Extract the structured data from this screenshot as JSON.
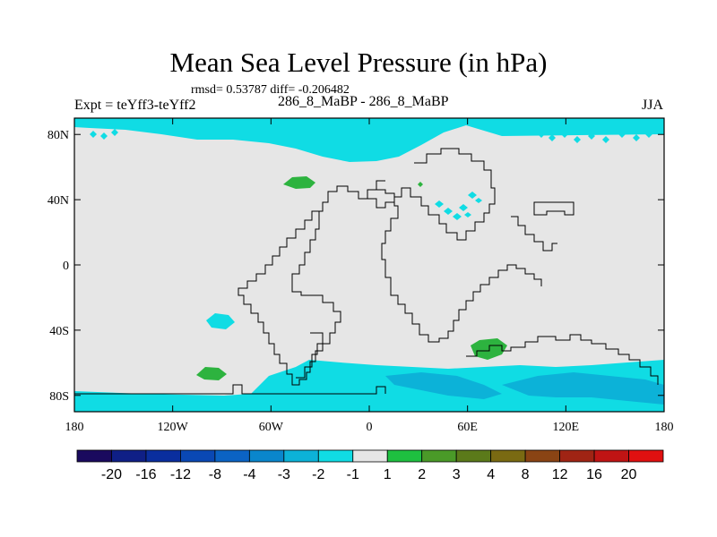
{
  "title": "Mean Sea Level Pressure (in hPa)",
  "stats": "rmsd= 0.53787 diff= -0.206482",
  "experiment": "Expt = teYff3-teYff2",
  "center_label": "286_8_MaBP - 286_8_MaBP",
  "season": "JJA",
  "lat_ticks": [
    "80N",
    "40N",
    "0",
    "40S",
    "80S"
  ],
  "lon_ticks": [
    "180",
    "120W",
    "60W",
    "0",
    "60E",
    "120E",
    "180"
  ],
  "colorbar": {
    "labels": [
      "-20",
      "-16",
      "-12",
      "-8",
      "-4",
      "-3",
      "-2",
      "-1",
      "1",
      "2",
      "3",
      "4",
      "8",
      "12",
      "16",
      "20"
    ],
    "colors": [
      "#1a0a5e",
      "#0f1f86",
      "#0a2e9e",
      "#0a48b4",
      "#0b63c4",
      "#0a86cc",
      "#0cb2d8",
      "#10dce4",
      "#e6e6e6",
      "#1ec040",
      "#4a9a28",
      "#5b7a1a",
      "#7a6a12",
      "#8a4414",
      "#a02414",
      "#c01414",
      "#e01010"
    ]
  },
  "colors": {
    "background": "#e6e6e6",
    "low": "#10dce4",
    "deeper_low": "#0cb2d8",
    "high": "#2db33f"
  }
}
